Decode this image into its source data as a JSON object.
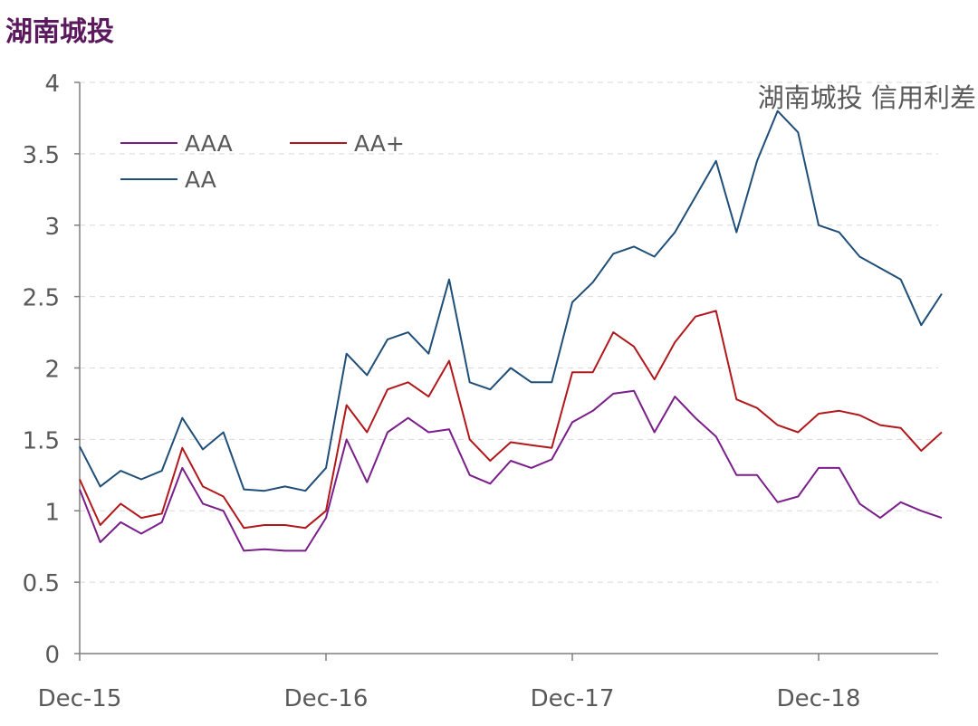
{
  "page": {
    "title": "湖南城投"
  },
  "chart_data": {
    "type": "line",
    "title": "湖南城投 信用利差",
    "xlabel": "",
    "ylabel": "",
    "x_tick_labels": [
      "Dec-15",
      "Dec-16",
      "Dec-17",
      "Dec-18"
    ],
    "y_ticks": [
      0,
      0.5,
      1,
      1.5,
      2,
      2.5,
      3,
      3.5,
      4
    ],
    "y_tick_labels": [
      "0",
      "0.5",
      "1",
      "1.5",
      "2",
      "2.5",
      "3",
      "3.5",
      "4"
    ],
    "ylim": [
      0,
      4
    ],
    "xlim_months": [
      0,
      42
    ],
    "grid": true,
    "legend_position": "top-left",
    "x_months": [
      0,
      1,
      2,
      3,
      4,
      5,
      6,
      7,
      8,
      9,
      10,
      11,
      12,
      13,
      14,
      15,
      16,
      17,
      18,
      19,
      20,
      21,
      22,
      23,
      24,
      25,
      26,
      27,
      28,
      29,
      30,
      31,
      32,
      33,
      34,
      35,
      36,
      37,
      38,
      39,
      40,
      41,
      42
    ],
    "series": [
      {
        "name": "AAA",
        "color": "#7a1e8a",
        "values": [
          1.15,
          0.78,
          0.92,
          0.84,
          0.92,
          1.3,
          1.05,
          1.0,
          0.72,
          0.73,
          0.72,
          0.72,
          0.95,
          1.5,
          1.2,
          1.55,
          1.65,
          1.55,
          1.57,
          1.25,
          1.19,
          1.35,
          1.3,
          1.36,
          1.62,
          1.7,
          1.82,
          1.84,
          1.55,
          1.8,
          1.65,
          1.52,
          1.25,
          1.25,
          1.06,
          1.1,
          1.3,
          1.3,
          1.05,
          0.95,
          1.06,
          1.0,
          0.95
        ]
      },
      {
        "name": "AA+",
        "color": "#b2181b",
        "values": [
          1.22,
          0.9,
          1.05,
          0.95,
          0.98,
          1.44,
          1.17,
          1.1,
          0.88,
          0.9,
          0.9,
          0.88,
          1.0,
          1.74,
          1.55,
          1.85,
          1.9,
          1.8,
          2.05,
          1.5,
          1.35,
          1.48,
          1.46,
          1.44,
          1.97,
          1.97,
          2.25,
          2.15,
          1.92,
          2.18,
          2.36,
          2.4,
          1.78,
          1.72,
          1.6,
          1.55,
          1.68,
          1.7,
          1.67,
          1.6,
          1.58,
          1.42,
          1.55
        ]
      },
      {
        "name": "AA",
        "color": "#1f4e79",
        "values": [
          1.45,
          1.17,
          1.28,
          1.22,
          1.28,
          1.65,
          1.43,
          1.55,
          1.15,
          1.14,
          1.17,
          1.14,
          1.3,
          2.1,
          1.95,
          2.2,
          2.25,
          2.1,
          2.62,
          1.9,
          1.85,
          2.0,
          1.9,
          1.9,
          2.46,
          2.6,
          2.8,
          2.85,
          2.78,
          2.95,
          3.2,
          3.45,
          2.95,
          3.45,
          3.8,
          3.65,
          3.0,
          2.95,
          2.78,
          2.7,
          2.62,
          2.3,
          2.52
        ]
      }
    ]
  }
}
